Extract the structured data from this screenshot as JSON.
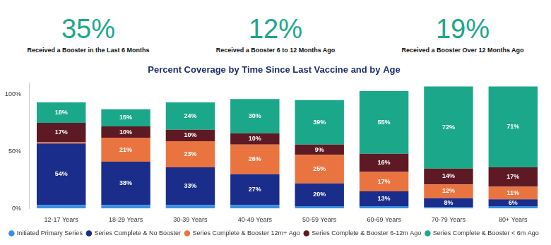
{
  "chart_data": {
    "type": "bar",
    "title": "Percent Coverage by Time Since Last Vaccine and by Age",
    "annotations": [
      {
        "text": "35%",
        "subtext": "Received a Booster in the Last 6 Months"
      },
      {
        "text": "12%",
        "subtext": "Received a Booster 6 to 12 Months Ago"
      },
      {
        "text": "19%",
        "subtext": "Received a Booster Over 12 Months Ago"
      }
    ],
    "categories": [
      "12-17 Years",
      "18-29 Years",
      "30-39 Years",
      "40-49 Years",
      "50-59 Years",
      "60-69 Years",
      "70-79 Years",
      "80+ Years"
    ],
    "series": [
      {
        "name": "Initiated Primary Series",
        "color": "#3b8fe0",
        "values": [
          3,
          3,
          3,
          3,
          2,
          2,
          1,
          2
        ],
        "value_labels": [
          null,
          null,
          null,
          null,
          null,
          null,
          null,
          null
        ]
      },
      {
        "name": "Series Complete & No Booster",
        "color": "#1a2d8a",
        "values": [
          54,
          38,
          33,
          27,
          20,
          13,
          8,
          6
        ],
        "value_labels": [
          "54%",
          "38%",
          "33%",
          "27%",
          "20%",
          "13%",
          "8%",
          "6%"
        ]
      },
      {
        "name": "Series Complete & Booster 12m+ Ago",
        "color": "#ea7440",
        "values": [
          1,
          21,
          23,
          26,
          25,
          17,
          12,
          11
        ],
        "value_labels": [
          null,
          "21%",
          "23%",
          "26%",
          "25%",
          "17%",
          "12%",
          "11%"
        ]
      },
      {
        "name": "Series Complete & Booster 6-12m Ago",
        "color": "#5e1a24",
        "values": [
          17,
          10,
          10,
          10,
          9,
          16,
          14,
          17
        ],
        "value_labels": [
          "17%",
          "10%",
          "10%",
          "10%",
          "9%",
          "16%",
          "14%",
          "17%"
        ]
      },
      {
        "name": "Series Complete & Booster < 6m Ago",
        "color": "#1ba88a",
        "values": [
          18,
          15,
          24,
          30,
          39,
          55,
          72,
          71
        ],
        "value_labels": [
          "18%",
          "15%",
          "24%",
          "30%",
          "39%",
          "55%",
          "72%",
          "71%"
        ]
      }
    ],
    "ylim": [
      0,
      110
    ],
    "yticks": [
      {
        "value": 0,
        "label": "0%"
      },
      {
        "value": 50,
        "label": "50%"
      },
      {
        "value": 100,
        "label": "100%"
      }
    ],
    "stacked": true,
    "data_labels": true,
    "grid": false,
    "legend": "bottom"
  }
}
